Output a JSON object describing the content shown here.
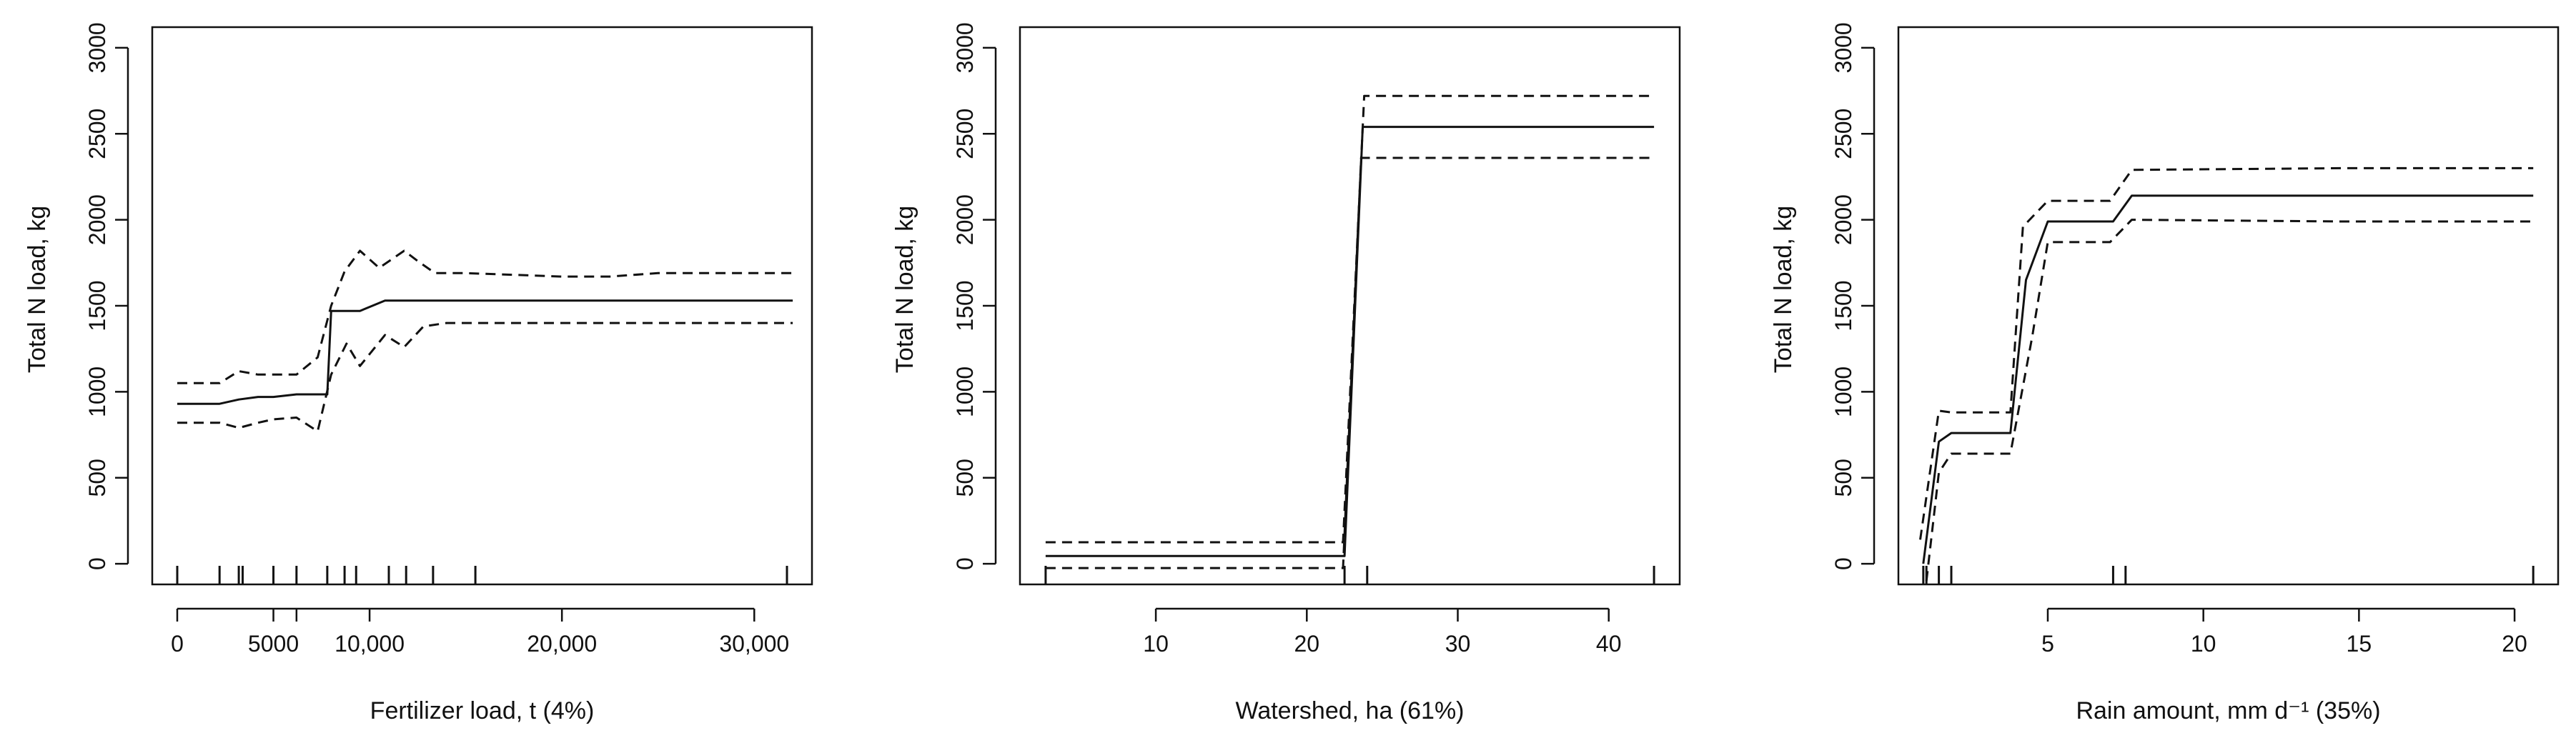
{
  "chart_data": [
    {
      "type": "line",
      "xlabel": "Fertilizer load, t (4%)",
      "ylabel": "Total N load, kg",
      "xlim": [
        -1300,
        33000
      ],
      "ylim": [
        -120,
        3120
      ],
      "xticks": [
        {
          "value": 0,
          "label": "0"
        },
        {
          "value": 5000,
          "label": "5000"
        },
        {
          "value": 10000,
          "label": "10,000"
        },
        {
          "value": 20000,
          "label": "20,000"
        },
        {
          "value": 30000,
          "label": "30,000"
        }
      ],
      "extra_xticks": [
        6200
      ],
      "yticks": [
        0,
        500,
        1000,
        1500,
        2000,
        2500,
        3000
      ],
      "rug": [
        0,
        2200,
        3200,
        3400,
        5000,
        6200,
        7800,
        8700,
        9300,
        11000,
        11900,
        13300,
        15500,
        31700
      ],
      "series": [
        {
          "style": "solid",
          "x": [
            0,
            2200,
            3200,
            4200,
            5000,
            6200,
            7300,
            7800,
            8000,
            9500,
            10800,
            12500,
            15000,
            20000,
            25000,
            32000
          ],
          "y": [
            930,
            930,
            955,
            970,
            970,
            985,
            985,
            985,
            1470,
            1470,
            1530,
            1530,
            1530,
            1530,
            1530,
            1530
          ]
        },
        {
          "style": "dashed",
          "x": [
            0,
            2200,
            3200,
            4200,
            5000,
            6200,
            7300,
            8000,
            8700,
            9500,
            10500,
            11800,
            12500,
            13400,
            15000,
            20000,
            22500,
            25000,
            32000
          ],
          "y": [
            1050,
            1050,
            1120,
            1100,
            1100,
            1100,
            1200,
            1500,
            1700,
            1820,
            1720,
            1820,
            1760,
            1690,
            1690,
            1670,
            1670,
            1690,
            1690
          ]
        },
        {
          "style": "dashed",
          "x": [
            0,
            2200,
            3200,
            4200,
            5000,
            6200,
            7300,
            8000,
            8800,
            9500,
            10800,
            11800,
            12800,
            14000,
            20000,
            32000
          ],
          "y": [
            820,
            820,
            790,
            820,
            840,
            850,
            770,
            1100,
            1280,
            1150,
            1330,
            1260,
            1380,
            1400,
            1400,
            1400
          ]
        }
      ]
    },
    {
      "type": "line",
      "xlabel": "Watershed, ha  (61%)",
      "ylabel": "Total N load, kg",
      "xlim": [
        1.0,
        44.7
      ],
      "ylim": [
        -120,
        3120
      ],
      "xticks": [
        {
          "value": 10,
          "label": "10"
        },
        {
          "value": 20,
          "label": "20"
        },
        {
          "value": 30,
          "label": "30"
        },
        {
          "value": 40,
          "label": "40"
        }
      ],
      "extra_xticks": [],
      "yticks": [
        0,
        500,
        1000,
        1500,
        2000,
        2500,
        3000
      ],
      "rug": [
        2.7,
        22.5,
        24.0,
        43.0
      ],
      "series": [
        {
          "style": "solid",
          "x": [
            2.7,
            22.5,
            23.7,
            43.0
          ],
          "y": [
            45,
            45,
            2540,
            2540
          ]
        },
        {
          "style": "dashed",
          "x": [
            2.7,
            22.4,
            23.8,
            43.0
          ],
          "y": [
            125,
            125,
            2720,
            2720
          ]
        },
        {
          "style": "dashed",
          "x": [
            2.7,
            22.4,
            23.6,
            43.0
          ],
          "y": [
            -25,
            -25,
            2360,
            2360
          ]
        }
      ]
    },
    {
      "type": "line",
      "xlabel": "Rain amount, mm d⁻¹ (35%)",
      "ylabel": "Total N load, kg",
      "xlim": [
        0.2,
        21.4
      ],
      "ylim": [
        -120,
        3120
      ],
      "xticks": [
        {
          "value": 5,
          "label": "5"
        },
        {
          "value": 10,
          "label": "10"
        },
        {
          "value": 15,
          "label": "15"
        },
        {
          "value": 20,
          "label": "20"
        }
      ],
      "extra_xticks": [],
      "yticks": [
        0,
        500,
        1000,
        1500,
        2000,
        2500,
        3000
      ],
      "rug": [
        1.0,
        1.1,
        1.5,
        1.9,
        7.1,
        7.5,
        20.6
      ],
      "series": [
        {
          "style": "solid",
          "x": [
            1.0,
            1.5,
            1.9,
            3.8,
            4.3,
            5.0,
            7.1,
            7.7,
            14.5,
            20.6
          ],
          "y": [
            0,
            710,
            760,
            760,
            1650,
            1990,
            1990,
            2140,
            2140,
            2140
          ]
        },
        {
          "style": "dashed",
          "x": [
            0.9,
            1.5,
            1.9,
            3.8,
            4.2,
            5.0,
            7.0,
            7.7,
            14.5,
            20.6
          ],
          "y": [
            140,
            890,
            880,
            880,
            1960,
            2110,
            2110,
            2290,
            2300,
            2300
          ]
        },
        {
          "style": "dashed",
          "x": [
            1.1,
            1.5,
            1.9,
            3.8,
            4.5,
            5.0,
            7.0,
            7.7,
            14.5,
            20.6
          ],
          "y": [
            -100,
            530,
            640,
            640,
            1320,
            1870,
            1870,
            2000,
            1990,
            1990
          ]
        }
      ]
    }
  ]
}
